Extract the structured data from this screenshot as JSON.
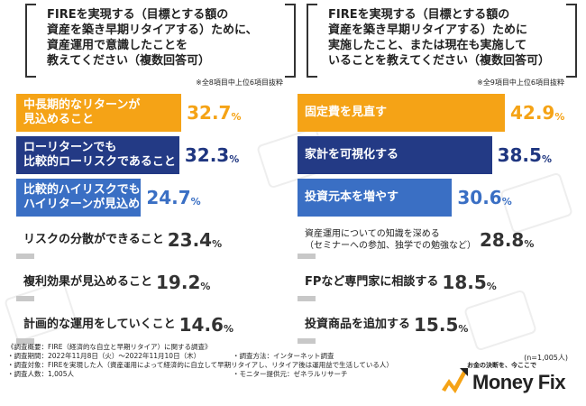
{
  "left": {
    "question": "FIREを実現する（目標とする額の\n資産を築き早期リタイアする）ために、\n資産運用で意識したことを\n教えてください（複数回答可）",
    "note": "※全8項目中上位6項目抜粋"
  },
  "right": {
    "question": "FIREを実現する（目標とする額の\n資産を築き早期リタイアする）ために\n実施したこと、または現在も実施して\nいることを教えてください（複数回答可）",
    "note": "※全9項目中上位6項目抜粋"
  },
  "sample": "(n=1,005人)",
  "footer": {
    "title": "《調査概要：FIRE（経済的な自立と早期リタイア）に関する調査》",
    "period": "・調査期間：2022年11月8日（火）〜2022年11月10日（木）",
    "method": "・調査方法：インターネット調査",
    "target": "・調査対象：FIREを実現した人（資産運用によって経済的に自立して早期リタイアし、リタイア後は運用益で生活している人）",
    "count": "・調査人数：1,005人",
    "provider": "・モニター提供元：ゼネラルリサーチ"
  },
  "logo": {
    "tagline": "お金の決断を、今ここで",
    "name": "Money Fix"
  },
  "colors": {
    "orange": "#f5a316",
    "navy": "#233a85",
    "blue": "#3a6fc4",
    "gray": "#c8c8c8",
    "orange_text": "#f5a316",
    "navy_text": "#1f3680",
    "blue_text": "#3a6fc4",
    "gray_text": "#333333"
  },
  "chart_data": [
    {
      "type": "bar",
      "orientation": "horizontal",
      "categories": [
        "中長期的なリターンが\n見込めること",
        "ローリターンでも\n比較的ローリスクであること",
        "比較的ハイリスクでも\nハイリターンが見込めること",
        "リスクの分散ができること",
        "複利効果が見込めること",
        "計画的な運用をしていくこと"
      ],
      "values": [
        32.7,
        32.3,
        24.7,
        23.4,
        19.2,
        14.6
      ],
      "value_labels": [
        {
          "num": "32.7",
          "pct": "%"
        },
        {
          "num": "32.3",
          "pct": "%"
        },
        {
          "num": "24.7",
          "pct": "%"
        },
        {
          "num": "23.4",
          "pct": "%"
        },
        {
          "num": "19.2",
          "pct": "%"
        },
        {
          "num": "14.6",
          "pct": "%"
        }
      ],
      "styles": [
        "orange",
        "navy",
        "blue",
        "gray",
        "gray",
        "gray"
      ]
    },
    {
      "type": "bar",
      "orientation": "horizontal",
      "categories": [
        "固定費を見直す",
        "家計を可視化する",
        "投資元本を増やす",
        "資産運用についての知識を深める\n（セミナーへの参加、独学での勉強など）",
        "FPなど専門家に相談する",
        "投資商品を追加する"
      ],
      "values": [
        42.9,
        38.5,
        30.6,
        28.8,
        18.5,
        15.5
      ],
      "value_labels": [
        {
          "num": "42.9",
          "pct": "%"
        },
        {
          "num": "38.5",
          "pct": "%"
        },
        {
          "num": "30.6",
          "pct": "%"
        },
        {
          "num": "28.8",
          "pct": "%"
        },
        {
          "num": "18.5",
          "pct": "%"
        },
        {
          "num": "15.5",
          "pct": "%"
        }
      ],
      "styles": [
        "orange",
        "navy",
        "blue",
        "gray",
        "gray",
        "gray"
      ]
    }
  ]
}
